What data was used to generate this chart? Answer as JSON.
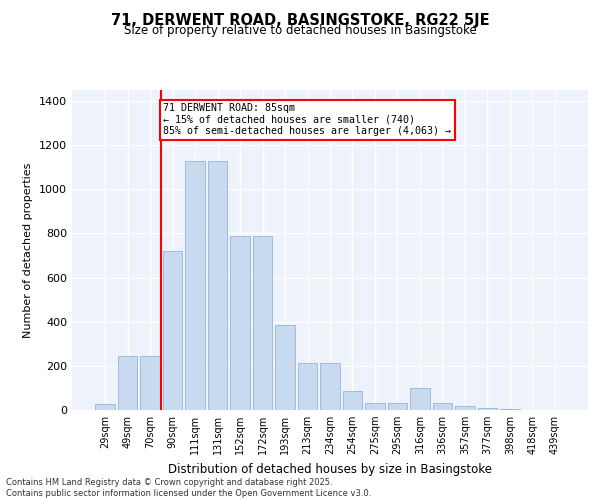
{
  "title": "71, DERWENT ROAD, BASINGSTOKE, RG22 5JE",
  "subtitle": "Size of property relative to detached houses in Basingstoke",
  "xlabel": "Distribution of detached houses by size in Basingstoke",
  "ylabel": "Number of detached properties",
  "categories": [
    "29sqm",
    "49sqm",
    "70sqm",
    "90sqm",
    "111sqm",
    "131sqm",
    "152sqm",
    "172sqm",
    "193sqm",
    "213sqm",
    "234sqm",
    "254sqm",
    "275sqm",
    "295sqm",
    "316sqm",
    "336sqm",
    "357sqm",
    "377sqm",
    "398sqm",
    "418sqm",
    "439sqm"
  ],
  "values": [
    25,
    245,
    245,
    720,
    1130,
    1130,
    790,
    790,
    385,
    215,
    215,
    85,
    30,
    30,
    100,
    30,
    20,
    10,
    5,
    2,
    1
  ],
  "bar_color": "#c8daf0",
  "bar_edge_color": "#9ab4d4",
  "annotation_title": "71 DERWENT ROAD: 85sqm",
  "annotation_line2": "← 15% of detached houses are smaller (740)",
  "annotation_line3": "85% of semi-detached houses are larger (4,063) →",
  "ylim": [
    0,
    1450
  ],
  "yticks": [
    0,
    200,
    400,
    600,
    800,
    1000,
    1200,
    1400
  ],
  "background_color": "#eef2fa",
  "grid_color": "#ffffff",
  "red_line_index": 2.5,
  "footer_line1": "Contains HM Land Registry data © Crown copyright and database right 2025.",
  "footer_line2": "Contains public sector information licensed under the Open Government Licence v3.0."
}
